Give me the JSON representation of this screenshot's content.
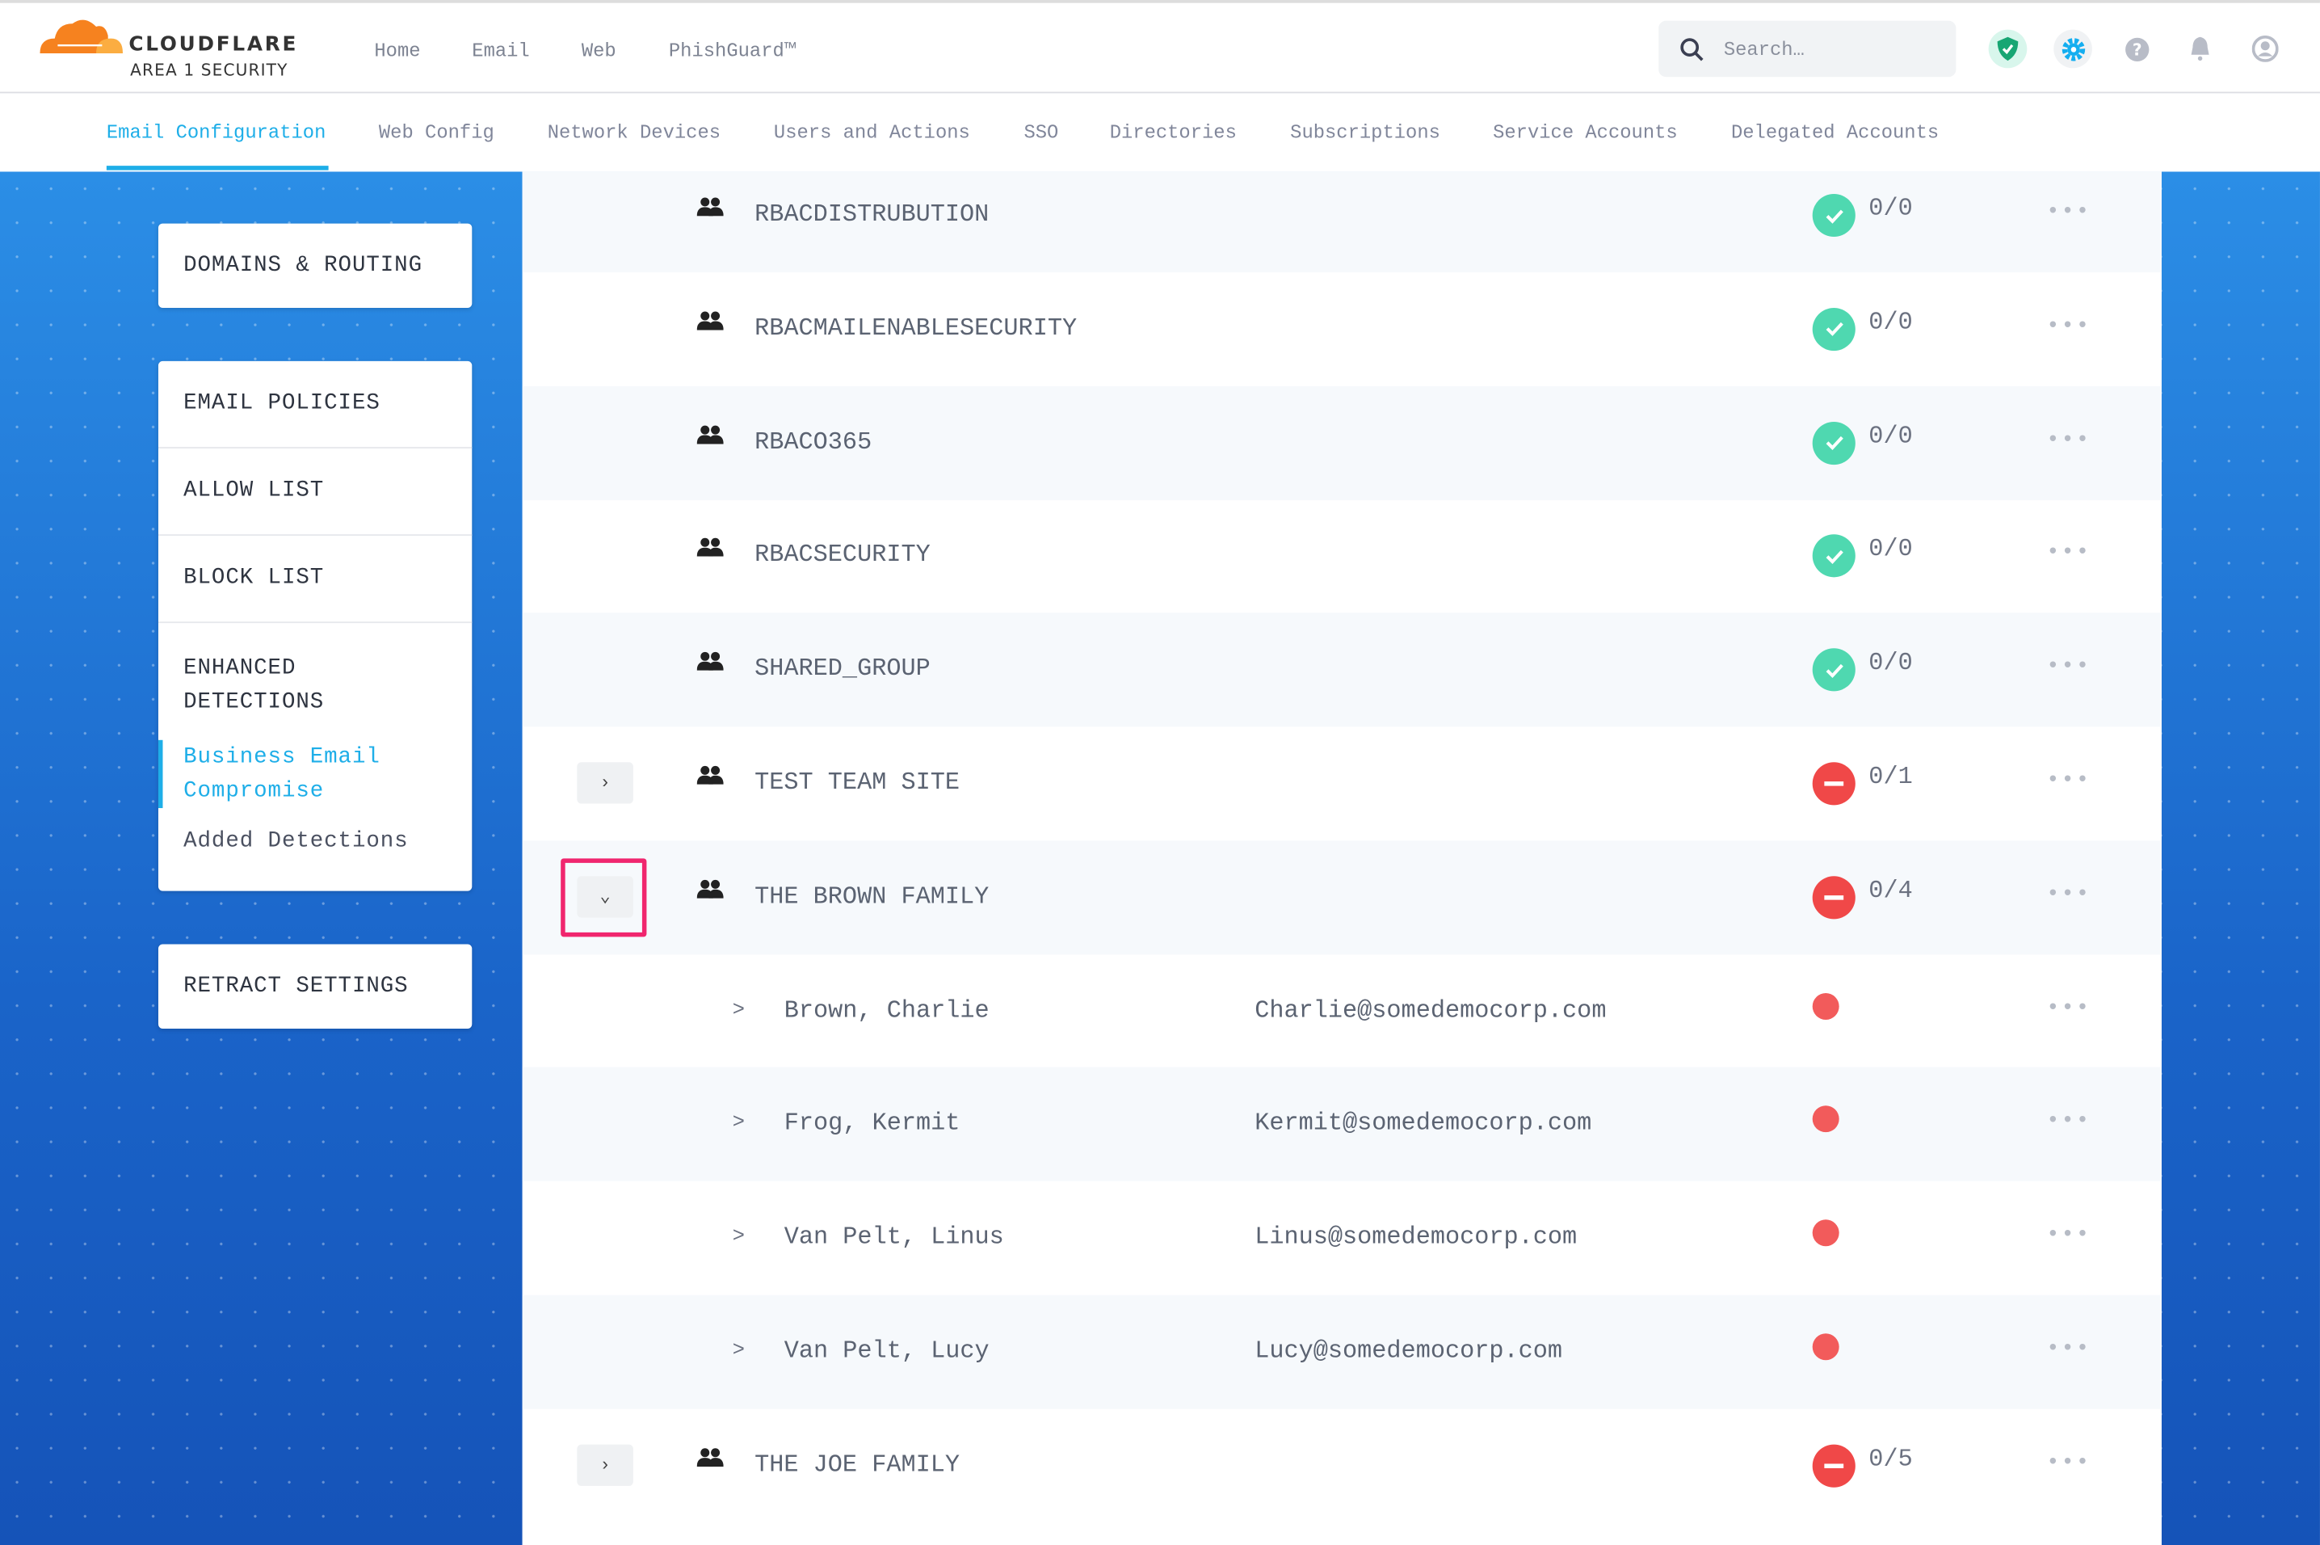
{
  "brand": {
    "name": "CLOUDFLARE",
    "sub": "AREA 1 SECURITY"
  },
  "nav": [
    {
      "label": "Home"
    },
    {
      "label": "Email"
    },
    {
      "label": "Web"
    },
    {
      "label": "PhishGuard™"
    }
  ],
  "search": {
    "placeholder": "Search…"
  },
  "header_icons": [
    "shield-check-icon",
    "gear-icon",
    "help-icon",
    "bell-icon",
    "user-icon"
  ],
  "tabs": [
    {
      "label": "Email Configuration",
      "active": true
    },
    {
      "label": "Web Config"
    },
    {
      "label": "Network Devices"
    },
    {
      "label": "Users and Actions"
    },
    {
      "label": "SSO"
    },
    {
      "label": "Directories"
    },
    {
      "label": "Subscriptions"
    },
    {
      "label": "Service Accounts"
    },
    {
      "label": "Delegated Accounts"
    }
  ],
  "sidebar": {
    "domains": "DOMAINS & ROUTING",
    "policies": "EMAIL POLICIES",
    "allow": "ALLOW LIST",
    "block": "BLOCK LIST",
    "enhanced": "ENHANCED DETECTIONS",
    "bec": "Business Email Compromise",
    "added": "Added Detections",
    "retract": "RETRACT SETTINGS"
  },
  "colors": {
    "accent": "#1eaee8",
    "ok": "#4fd8b0",
    "error": "#f04848",
    "highlight": "#f0266e"
  },
  "rows": [
    {
      "type": "group",
      "name": "RBACDISTRUBUTION",
      "status": "ok",
      "count": "0/0"
    },
    {
      "type": "group",
      "name": "RBACMAILENABLESECURITY",
      "status": "ok",
      "count": "0/0"
    },
    {
      "type": "group",
      "name": "RBACO365",
      "status": "ok",
      "count": "0/0"
    },
    {
      "type": "group",
      "name": "RBACSECURITY",
      "status": "ok",
      "count": "0/0"
    },
    {
      "type": "group",
      "name": "SHARED_GROUP",
      "status": "ok",
      "count": "0/0"
    },
    {
      "type": "group",
      "name": "TEST TEAM SITE",
      "status": "error",
      "count": "0/1",
      "expand": "›"
    },
    {
      "type": "group",
      "name": "THE BROWN FAMILY",
      "status": "error",
      "count": "0/4",
      "expand": "⌄",
      "expanded": true
    },
    {
      "type": "member",
      "chev": ">",
      "name": "Brown, Charlie",
      "email": "Charlie@somedemocorp.com"
    },
    {
      "type": "member",
      "chev": ">",
      "name": "Frog, Kermit",
      "email": "Kermit@somedemocorp.com"
    },
    {
      "type": "member",
      "chev": ">",
      "name": "Van Pelt, Linus",
      "email": "Linus@somedemocorp.com"
    },
    {
      "type": "member",
      "chev": ">",
      "name": "Van Pelt, Lucy",
      "email": "Lucy@somedemocorp.com"
    },
    {
      "type": "group",
      "name": "THE JOE FAMILY",
      "status": "error",
      "count": "0/5",
      "expand": "›"
    }
  ]
}
